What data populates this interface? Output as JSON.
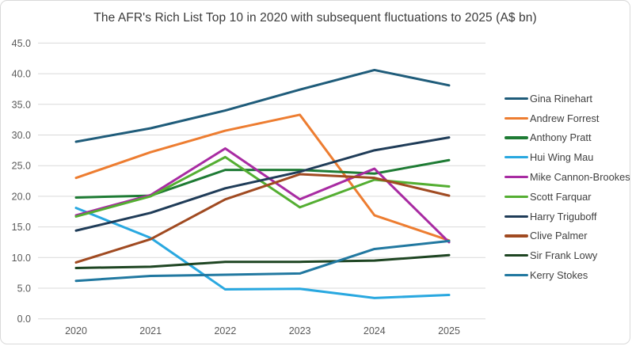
{
  "chart": {
    "frame_border_color": "#d9d9d9",
    "background": "#ffffff"
  },
  "chart_data": {
    "type": "line",
    "title": "The AFR's Rich List Top 10 in 2020 with subsequent fluctuations to 2025 (A$ bn)",
    "categories": [
      "2020",
      "2021",
      "2022",
      "2023",
      "2024",
      "2025"
    ],
    "series": [
      {
        "name": "Gina Rinehart",
        "color": "#1F5C7A",
        "values": [
          28.9,
          31.1,
          34.0,
          37.4,
          40.6,
          38.1
        ]
      },
      {
        "name": "Andrew Forrest",
        "color": "#ED7D31",
        "values": [
          23.0,
          27.2,
          30.7,
          33.3,
          16.9,
          12.8
        ]
      },
      {
        "name": "Anthony Pratt",
        "color": "#1E7B34",
        "values": [
          19.8,
          20.1,
          24.3,
          24.3,
          23.7,
          25.9
        ]
      },
      {
        "name": "Hui Wing Mau",
        "color": "#29A8E0",
        "values": [
          18.1,
          13.2,
          4.8,
          4.9,
          3.4,
          3.9
        ]
      },
      {
        "name": "Mike Cannon-Brookes",
        "color": "#A82BA2",
        "values": [
          16.9,
          20.2,
          27.8,
          19.5,
          24.5,
          12.5
        ]
      },
      {
        "name": "Scott Farquar",
        "color": "#54AE32",
        "values": [
          16.7,
          20.0,
          26.4,
          18.2,
          22.7,
          21.6
        ]
      },
      {
        "name": "Harry Triguboff",
        "color": "#1F3C58",
        "values": [
          14.4,
          17.3,
          21.3,
          24.0,
          27.5,
          29.6
        ]
      },
      {
        "name": "Clive Palmer",
        "color": "#A04A21",
        "values": [
          9.2,
          13.0,
          19.5,
          23.6,
          23.0,
          20.1
        ]
      },
      {
        "name": "Sir Frank Lowy",
        "color": "#1E4522",
        "values": [
          8.3,
          8.5,
          9.3,
          9.3,
          9.5,
          10.4
        ]
      },
      {
        "name": "Kerry Stokes",
        "color": "#2178A0",
        "values": [
          6.2,
          7.0,
          7.2,
          7.4,
          11.4,
          12.7
        ]
      }
    ],
    "xlabel": "",
    "ylabel": "",
    "ylim": [
      0,
      45
    ],
    "ytick_step": 5,
    "ytick_labels": [
      "0.0",
      "5.0",
      "10.0",
      "15.0",
      "20.0",
      "25.0",
      "30.0",
      "35.0",
      "40.0",
      "45.0"
    ],
    "grid": true,
    "gridline_color": "#d9d9d9",
    "axis_text_color": "#595959",
    "legend_position": "right",
    "line_width": 3
  }
}
